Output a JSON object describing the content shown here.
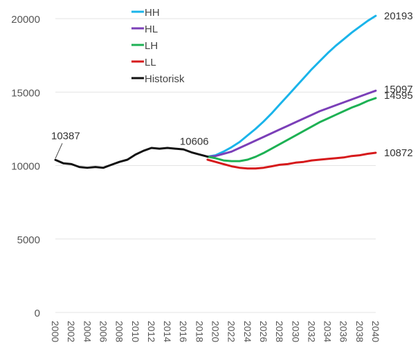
{
  "chart_data": {
    "type": "line",
    "title": "",
    "xlabel": "",
    "ylabel": "",
    "xlim": [
      2000,
      2040
    ],
    "ylim": [
      0,
      20000
    ],
    "yticks": [
      0,
      5000,
      10000,
      15000,
      20000
    ],
    "ytick_labels": [
      "0",
      "5000",
      "10000",
      "15000",
      "20000"
    ],
    "xticks": [
      2000,
      2002,
      2004,
      2006,
      2008,
      2010,
      2012,
      2014,
      2016,
      2018,
      2020,
      2022,
      2024,
      2026,
      2028,
      2030,
      2032,
      2034,
      2036,
      2038,
      2040
    ],
    "xtick_labels": [
      "2000",
      "2002",
      "2004",
      "2006",
      "2008",
      "2010",
      "2012",
      "2014",
      "2016",
      "2018",
      "2020",
      "2022",
      "2024",
      "2026",
      "2028",
      "2030",
      "2032",
      "2034",
      "2036",
      "2038",
      "2040"
    ],
    "grid": "horizontal",
    "legend_position": "top-center",
    "series": [
      {
        "name": "HH",
        "color": "#1ab4ea",
        "x": [
          2019,
          2020,
          2021,
          2022,
          2023,
          2024,
          2025,
          2026,
          2027,
          2028,
          2029,
          2030,
          2031,
          2032,
          2033,
          2034,
          2035,
          2036,
          2037,
          2038,
          2039,
          2040
        ],
        "y": [
          10606,
          10700,
          10950,
          11250,
          11600,
          12050,
          12500,
          13000,
          13550,
          14150,
          14750,
          15350,
          15950,
          16550,
          17100,
          17650,
          18150,
          18600,
          19050,
          19450,
          19850,
          20193
        ]
      },
      {
        "name": "HL",
        "color": "#7b3fb8",
        "x": [
          2019,
          2020,
          2021,
          2022,
          2023,
          2024,
          2025,
          2026,
          2027,
          2028,
          2029,
          2030,
          2031,
          2032,
          2033,
          2034,
          2035,
          2036,
          2037,
          2038,
          2039,
          2040
        ],
        "y": [
          10606,
          10650,
          10800,
          10950,
          11200,
          11450,
          11700,
          11950,
          12200,
          12450,
          12700,
          12950,
          13200,
          13450,
          13700,
          13900,
          14100,
          14300,
          14500,
          14700,
          14900,
          15097
        ]
      },
      {
        "name": "LH",
        "color": "#1db154",
        "x": [
          2019,
          2020,
          2021,
          2022,
          2023,
          2024,
          2025,
          2026,
          2027,
          2028,
          2029,
          2030,
          2031,
          2032,
          2033,
          2034,
          2035,
          2036,
          2037,
          2038,
          2039,
          2040
        ],
        "y": [
          10606,
          10500,
          10350,
          10300,
          10300,
          10400,
          10600,
          10850,
          11150,
          11450,
          11750,
          12050,
          12350,
          12650,
          12950,
          13200,
          13450,
          13700,
          13950,
          14150,
          14400,
          14595
        ]
      },
      {
        "name": "LL",
        "color": "#d6191b",
        "x": [
          2019,
          2020,
          2021,
          2022,
          2023,
          2024,
          2025,
          2026,
          2027,
          2028,
          2029,
          2030,
          2031,
          2032,
          2033,
          2034,
          2035,
          2036,
          2037,
          2038,
          2039,
          2040
        ],
        "y": [
          10400,
          10250,
          10100,
          9950,
          9850,
          9800,
          9800,
          9850,
          9950,
          10050,
          10100,
          10200,
          10250,
          10350,
          10400,
          10450,
          10500,
          10550,
          10650,
          10700,
          10800,
          10872
        ]
      },
      {
        "name": "Historisk",
        "color": "#111111",
        "x": [
          2000,
          2001,
          2002,
          2003,
          2004,
          2005,
          2006,
          2007,
          2008,
          2009,
          2010,
          2011,
          2012,
          2013,
          2014,
          2015,
          2016,
          2017,
          2018,
          2019
        ],
        "y": [
          10387,
          10150,
          10100,
          9900,
          9850,
          9900,
          9850,
          10050,
          10250,
          10400,
          10750,
          11000,
          11200,
          11150,
          11200,
          11150,
          11100,
          10900,
          10750,
          10606
        ]
      }
    ],
    "annotations": [
      {
        "text": "10387",
        "x": 2000,
        "y": 10387,
        "series": "Historisk",
        "placement": "above-left"
      },
      {
        "text": "10606",
        "x": 2019,
        "y": 10606,
        "series": "Historisk",
        "placement": "above"
      },
      {
        "text": "20193",
        "x": 2040,
        "y": 20193,
        "series": "HH",
        "placement": "right"
      },
      {
        "text": "15097",
        "x": 2040,
        "y": 15097,
        "series": "HL",
        "placement": "right"
      },
      {
        "text": "14595",
        "x": 2040,
        "y": 14595,
        "series": "LH",
        "placement": "right"
      },
      {
        "text": "10872",
        "x": 2040,
        "y": 10872,
        "series": "LL",
        "placement": "right"
      }
    ]
  }
}
